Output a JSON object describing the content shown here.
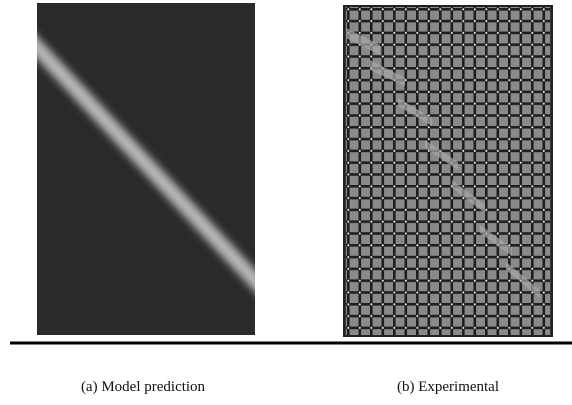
{
  "figure": {
    "panels": [
      {
        "caption": "(a) Model prediction"
      },
      {
        "caption": "(b) Experimental"
      }
    ]
  }
}
